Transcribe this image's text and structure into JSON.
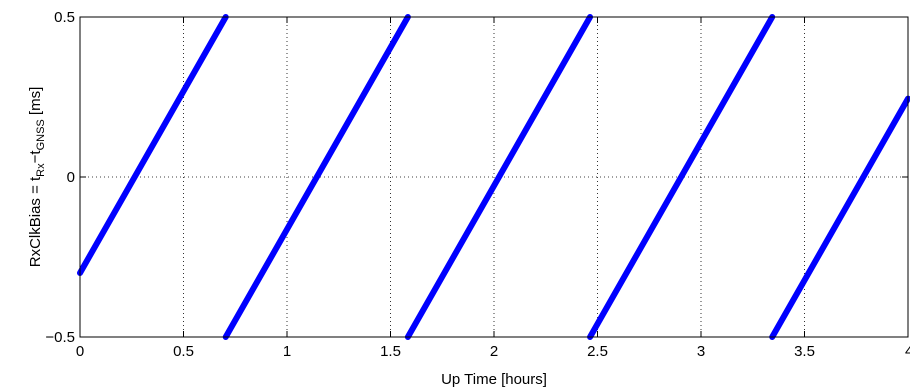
{
  "chart_data": {
    "type": "line",
    "xlabel": "Up Time [hours]",
    "ylabel": {
      "parts": [
        {
          "text": "RxClkBias = t",
          "sub": false
        },
        {
          "text": "Rx",
          "sub": true
        },
        {
          "text": "−t",
          "sub": false
        },
        {
          "text": "GNSS",
          "sub": true
        },
        {
          "text": " [ms]",
          "sub": false
        }
      ]
    },
    "xlim": [
      0,
      4
    ],
    "ylim": [
      -0.5,
      0.5
    ],
    "x_ticks": [
      0,
      0.5,
      1,
      1.5,
      2,
      2.5,
      3,
      3.5,
      4
    ],
    "x_tick_labels": [
      "0",
      "0.5",
      "1",
      "1.5",
      "2",
      "2.5",
      "3",
      "3.5",
      "4"
    ],
    "y_ticks": [
      -0.5,
      0,
      0.5
    ],
    "y_tick_labels": [
      "−0.5",
      "0",
      "0.5"
    ],
    "grid": true,
    "line_color": "#0000ff",
    "series": [
      {
        "x": [
          0,
          0.704
        ],
        "y": [
          -0.3,
          0.5
        ]
      },
      {
        "x": [
          0.704,
          1.584
        ],
        "y": [
          -0.5,
          0.5
        ]
      },
      {
        "x": [
          1.584,
          2.464
        ],
        "y": [
          -0.5,
          0.5
        ]
      },
      {
        "x": [
          2.464,
          3.344
        ],
        "y": [
          -0.5,
          0.5
        ]
      },
      {
        "x": [
          3.344,
          4.0
        ],
        "y": [
          -0.5,
          0.245
        ]
      }
    ]
  }
}
